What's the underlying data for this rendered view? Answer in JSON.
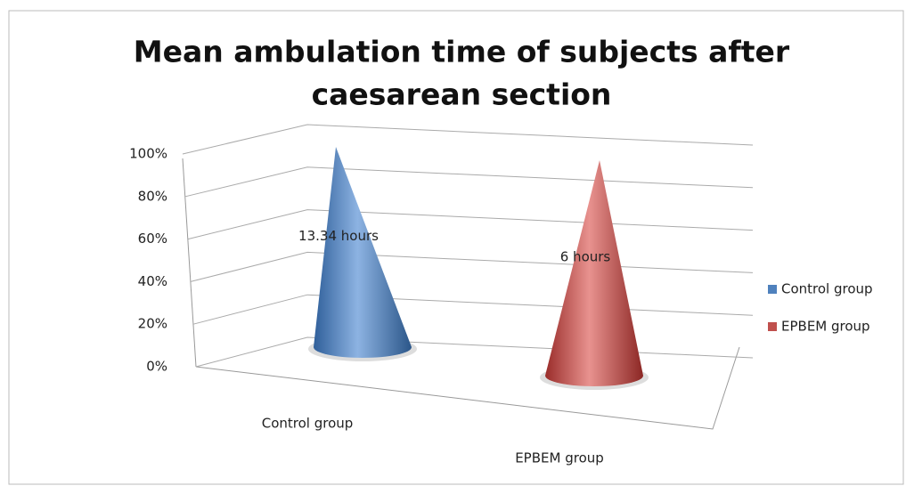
{
  "chart_data": {
    "type": "cone3d",
    "stacked": "percent",
    "title_lines": [
      "Mean ambulation time of subjects after",
      "caesarean section"
    ],
    "categories": [
      "Control group",
      "EPBEM group"
    ],
    "series": [
      {
        "name": "Control group",
        "color": "#4f81bd",
        "values": [
          13.34,
          null
        ],
        "value_labels": [
          "13.34 hours",
          null
        ]
      },
      {
        "name": "EPBEM group",
        "color": "#c0504d",
        "values": [
          null,
          6
        ],
        "value_labels": [
          null,
          "6 hours"
        ]
      }
    ],
    "ylim": [
      0,
      100
    ],
    "yticks": [
      {
        "value": 0,
        "label": "0%"
      },
      {
        "value": 20,
        "label": "20%"
      },
      {
        "value": 40,
        "label": "40%"
      },
      {
        "value": 60,
        "label": "60%"
      },
      {
        "value": 80,
        "label": "80%"
      },
      {
        "value": 100,
        "label": "100%"
      }
    ],
    "grid": true,
    "legend": "right"
  }
}
